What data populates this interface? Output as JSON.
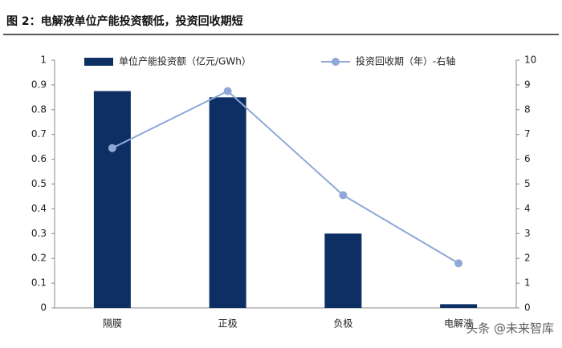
{
  "chart_data": {
    "type": "bar-line",
    "title": "图 2：电解液单位产能投资额低，投资回收期短",
    "categories": [
      "隔膜",
      "正极",
      "负极",
      "电解液"
    ],
    "series": [
      {
        "name": "单位产能投资额（亿元/GWh）",
        "type": "bar",
        "color": "#0d2f63",
        "values": [
          0.875,
          0.85,
          0.3,
          0.015
        ]
      },
      {
        "name": "投资回收期（年）-右轴",
        "type": "line",
        "axis": "y2",
        "color": "#8fa8d8",
        "values": [
          6.45,
          8.75,
          4.55,
          1.8
        ]
      }
    ],
    "ylim": [
      0,
      1
    ],
    "yticks": [
      0,
      0.1,
      0.2,
      0.3,
      0.4,
      0.5,
      0.6,
      0.7,
      0.8,
      0.9,
      1
    ],
    "y2lim": [
      0,
      10
    ],
    "y2ticks": [
      0,
      1,
      2,
      3,
      4,
      5,
      6,
      7,
      8,
      9,
      10
    ],
    "grid": false,
    "legend": "top",
    "watermark": "头条 @未来智库"
  }
}
